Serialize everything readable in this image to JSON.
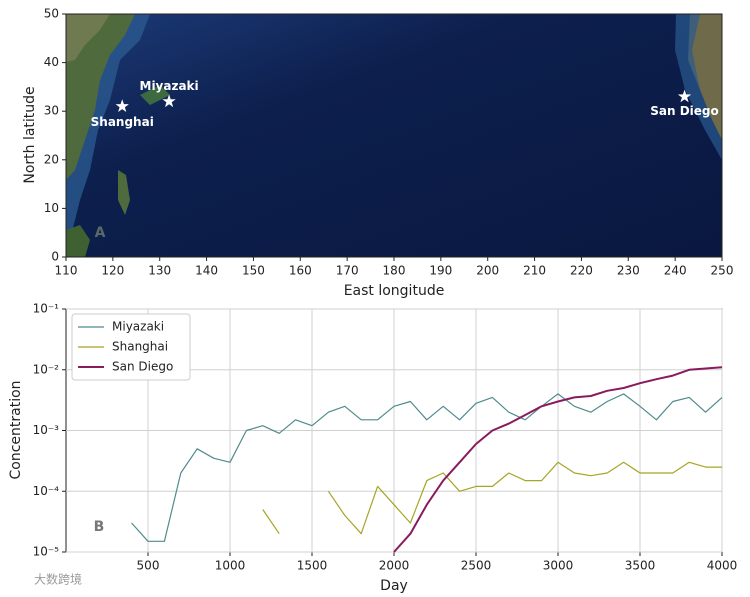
{
  "chart_data": [
    {
      "type": "scatter",
      "x_label": "East longitude",
      "y_label": "North latitude",
      "panel_label": "A",
      "xlim": [
        110,
        250
      ],
      "ylim": [
        0,
        50
      ],
      "xticks": [
        110,
        120,
        130,
        140,
        150,
        160,
        170,
        180,
        190,
        200,
        210,
        220,
        230,
        240,
        250
      ],
      "yticks": [
        0,
        10,
        20,
        30,
        40,
        50
      ],
      "x": [
        122,
        132,
        242
      ],
      "y": [
        31,
        32,
        33
      ],
      "point_labels": [
        "Shanghai",
        "Miyazaki",
        "San Diego"
      ],
      "color": "#ffffff"
    },
    {
      "type": "line",
      "log_y": true,
      "grid": true,
      "legend": "upper-left",
      "x_label": "Day",
      "y_label": "Concentration",
      "panel_label": "B",
      "xlim": [
        0,
        4000
      ],
      "xticks": [
        500,
        1000,
        1500,
        2000,
        2500,
        3000,
        3500,
        4000
      ],
      "ylim": [
        1e-05,
        0.1
      ],
      "yticks": [
        {
          "value": 1e-05,
          "label": "10⁻⁵"
        },
        {
          "value": 0.0001,
          "label": "10⁻⁴"
        },
        {
          "value": 0.001,
          "label": "10⁻³"
        },
        {
          "value": 0.01,
          "label": "10⁻²"
        },
        {
          "value": 0.1,
          "label": "10⁻¹"
        }
      ],
      "x": [
        0,
        100,
        200,
        300,
        400,
        500,
        600,
        700,
        800,
        900,
        1000,
        1100,
        1200,
        1300,
        1400,
        1500,
        1600,
        1700,
        1800,
        1900,
        2000,
        2100,
        2200,
        2300,
        2400,
        2500,
        2600,
        2700,
        2800,
        2900,
        3000,
        3100,
        3200,
        3300,
        3400,
        3500,
        3600,
        3700,
        3800,
        3900,
        4000
      ],
      "series": [
        {
          "name": "Miyazaki",
          "color": "#4f8b8e",
          "width": 1.2,
          "values": [
            null,
            null,
            null,
            null,
            3e-05,
            1.5e-05,
            1.5e-05,
            0.0002,
            0.0005,
            0.00035,
            0.0003,
            0.001,
            0.0012,
            0.0009,
            0.0015,
            0.0012,
            0.002,
            0.0025,
            0.0015,
            0.0015,
            0.0025,
            0.003,
            0.0015,
            0.0025,
            0.0015,
            0.0028,
            0.0035,
            0.002,
            0.0015,
            0.0025,
            0.004,
            0.0025,
            0.002,
            0.003,
            0.004,
            0.0025,
            0.0015,
            0.003,
            0.0035,
            0.002,
            0.0035
          ]
        },
        {
          "name": "Shanghai",
          "color": "#a8a424",
          "width": 1.2,
          "values": [
            null,
            null,
            null,
            null,
            null,
            null,
            null,
            null,
            null,
            null,
            null,
            null,
            5e-05,
            2e-05,
            null,
            null,
            0.0001,
            4e-05,
            2e-05,
            0.00012,
            6e-05,
            3e-05,
            0.00015,
            0.0002,
            0.0001,
            0.00012,
            0.00012,
            0.0002,
            0.00015,
            0.00015,
            0.0003,
            0.0002,
            0.00018,
            0.0002,
            0.0003,
            0.0002,
            0.0002,
            0.0002,
            0.0003,
            0.00025,
            0.00025
          ]
        },
        {
          "name": "San Diego",
          "color": "#8a1a5e",
          "width": 2,
          "values": [
            null,
            null,
            null,
            null,
            null,
            null,
            null,
            null,
            null,
            null,
            null,
            null,
            null,
            null,
            null,
            null,
            null,
            null,
            null,
            null,
            1e-05,
            2e-05,
            6e-05,
            0.00015,
            0.0003,
            0.0006,
            0.001,
            0.0013,
            0.0018,
            0.0025,
            0.003,
            0.0035,
            0.0037,
            0.0045,
            0.005,
            0.006,
            0.007,
            0.008,
            0.01,
            0.0105,
            0.011
          ]
        }
      ]
    }
  ],
  "watermark": "大数跨境"
}
